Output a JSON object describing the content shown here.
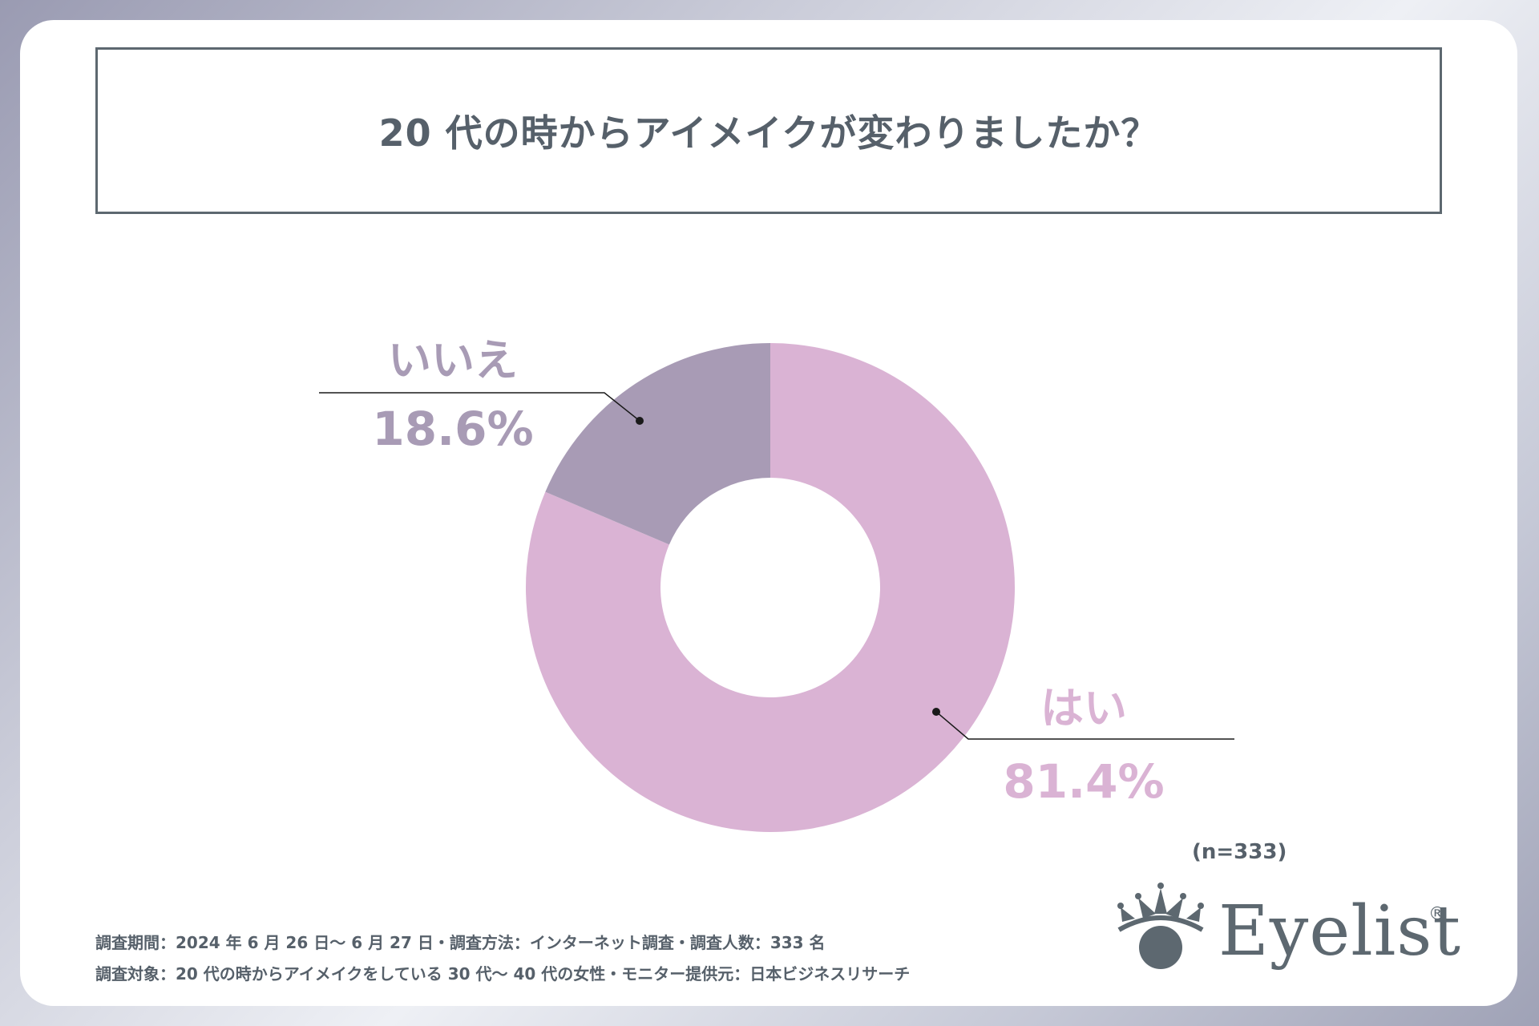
{
  "title": "20 代の時からアイメイクが変わりましたか？",
  "chart_data": {
    "type": "pie",
    "donut": true,
    "title": "20 代の時からアイメイクが変わりましたか？",
    "slices": [
      {
        "label": "はい",
        "value": 81.4,
        "value_label": "81.4%",
        "color": "#dab3d4"
      },
      {
        "label": "いいえ",
        "value": 18.6,
        "value_label": "18.6%",
        "color": "#a89bb5"
      }
    ]
  },
  "sample_size": "(n=333)",
  "footnotes": [
    "調査期間：2024 年 6 月 26 日～ 6 月 27 日・調査方法：インターネット調査・調査人数：333 名",
    "調査対象：20 代の時からアイメイクをしている 30 代～ 40 代の女性・モニター提供元：日本ビジネスリサーチ"
  ],
  "logo": {
    "name": "Eyelist",
    "mark": "®",
    "icon": "crown-eye-icon",
    "color": "#5d6870"
  }
}
